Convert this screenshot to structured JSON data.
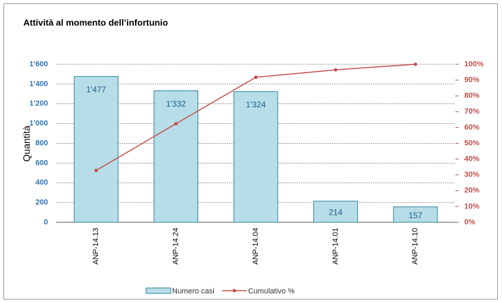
{
  "chart_data": {
    "type": "bar",
    "title": "Attività al momento dell’infortunio",
    "y_label": "Quantità",
    "categories": [
      "ANP-14.13",
      "ANP-14.24",
      "ANP-14.04",
      "ANP-14.01",
      "ANP-14.10"
    ],
    "series": [
      {
        "name": "Numero casi",
        "type": "bar",
        "color": "#b7dde8",
        "edge_color": "#31849b",
        "values": [
          1477,
          1332,
          1324,
          214,
          157
        ],
        "value_labels": [
          "1'477",
          "1'332",
          "1'324",
          "214",
          "157"
        ]
      },
      {
        "name": "Cumulativo %",
        "type": "line",
        "axis": "y2",
        "color": "#c0504d",
        "values": [
          32.8,
          62.4,
          91.8,
          96.5,
          100
        ]
      }
    ],
    "ylim": [
      0,
      1600
    ],
    "yticks": [
      0,
      200,
      400,
      600,
      800,
      {
        "value": 1000,
        "label": "1'000"
      },
      {
        "value": 1200,
        "label": "1'200"
      },
      {
        "value": 1400,
        "label": "1'400"
      },
      {
        "value": 1600,
        "label": "1'600"
      }
    ],
    "y2lim": [
      0,
      100
    ],
    "y2ticks": [
      {
        "value": 0,
        "label": "0%"
      },
      {
        "value": 10,
        "label": "10%"
      },
      {
        "value": 20,
        "label": "20%"
      },
      {
        "value": 30,
        "label": "30%"
      },
      {
        "value": 40,
        "label": "40%"
      },
      {
        "value": 50,
        "label": "50%"
      },
      {
        "value": 60,
        "label": "60%"
      },
      {
        "value": 70,
        "label": "70%"
      },
      {
        "value": 80,
        "label": "80%"
      },
      {
        "value": 90,
        "label": "90%"
      },
      {
        "value": 100,
        "label": "100%"
      }
    ],
    "grid": true,
    "legend": "bottom"
  }
}
